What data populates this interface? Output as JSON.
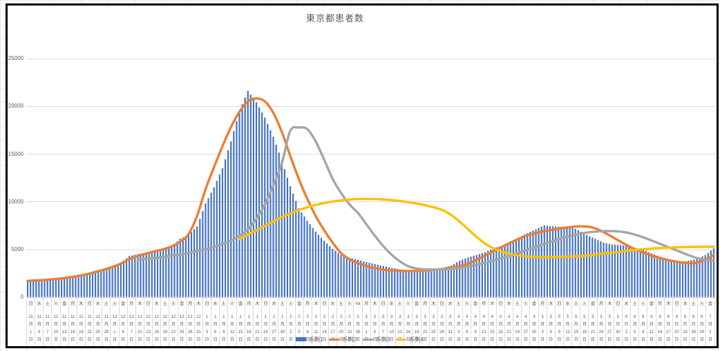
{
  "chart_data": {
    "type": "bar",
    "title": "東京都患者数",
    "xlabel": "",
    "ylabel": "",
    "ylim": [
      0,
      25000
    ],
    "y_tick_step": 5000,
    "y_tick_labels": [
      "0",
      "5000",
      "10000",
      "15000",
      "20000",
      "25000"
    ],
    "grid": true,
    "legend_position": "bottom",
    "categories_note": "vertical labels: weekday + month/day, one label every 3 days, daily bars",
    "categories": [
      [
        "日",
        11,
        1
      ],
      [
        "水",
        11,
        4
      ],
      [
        "土",
        11,
        7
      ],
      [
        "火",
        11,
        10
      ],
      [
        "金",
        11,
        13
      ],
      [
        "月",
        11,
        16
      ],
      [
        "木",
        11,
        19
      ],
      [
        "日",
        11,
        22
      ],
      [
        "水",
        11,
        25
      ],
      [
        "土",
        11,
        28
      ],
      [
        "火",
        12,
        1
      ],
      [
        "金",
        12,
        4
      ],
      [
        "月",
        12,
        7
      ],
      [
        "木",
        12,
        10
      ],
      [
        "日",
        12,
        13
      ],
      [
        "水",
        12,
        16
      ],
      [
        "土",
        12,
        19
      ],
      [
        "火",
        12,
        22
      ],
      [
        "金",
        12,
        25
      ],
      [
        "月",
        12,
        28
      ],
      [
        "木",
        12,
        31
      ],
      [
        "日",
        1,
        3
      ],
      [
        "水",
        1,
        6
      ],
      [
        "土",
        1,
        9
      ],
      [
        "火",
        1,
        12
      ],
      [
        "金",
        1,
        15
      ],
      [
        "月",
        1,
        18
      ],
      [
        "木",
        1,
        21
      ],
      [
        "日",
        1,
        24
      ],
      [
        "水",
        1,
        27
      ],
      [
        "土",
        1,
        30
      ],
      [
        "火",
        2,
        2
      ],
      [
        "金",
        2,
        5
      ],
      [
        "月",
        2,
        8
      ],
      [
        "木",
        2,
        11
      ],
      [
        "日",
        2,
        14
      ],
      [
        "水",
        2,
        17
      ],
      [
        "土",
        2,
        20
      ],
      [
        "火",
        2,
        23
      ],
      [
        "ha",
        2,
        26
      ],
      [
        "月",
        3,
        1
      ],
      [
        "木",
        3,
        4
      ],
      [
        "日",
        3,
        7
      ],
      [
        "水",
        3,
        10
      ],
      [
        "土",
        3,
        13
      ],
      [
        "火",
        3,
        16
      ],
      [
        "金",
        3,
        19
      ],
      [
        "月",
        3,
        22
      ],
      [
        "木",
        3,
        25
      ],
      [
        "日",
        3,
        28
      ],
      [
        "水",
        3,
        31
      ],
      [
        "土",
        4,
        3
      ],
      [
        "火",
        4,
        6
      ],
      [
        "金",
        4,
        9
      ],
      [
        "月",
        4,
        12
      ],
      [
        "木",
        4,
        15
      ],
      [
        "日",
        4,
        18
      ],
      [
        "水",
        4,
        21
      ],
      [
        "土",
        4,
        24
      ],
      [
        "火",
        4,
        27
      ],
      [
        "金",
        4,
        30
      ],
      [
        "月",
        5,
        3
      ],
      [
        "木",
        5,
        6
      ],
      [
        "日",
        5,
        9
      ],
      [
        "水",
        5,
        12
      ],
      [
        "土",
        5,
        15
      ],
      [
        "火",
        5,
        18
      ],
      [
        "金",
        5,
        21
      ],
      [
        "月",
        5,
        24
      ],
      [
        "木",
        5,
        27
      ],
      [
        "日",
        5,
        30
      ],
      [
        "水",
        6,
        2
      ],
      [
        "土",
        6,
        5
      ],
      [
        "火",
        6,
        8
      ],
      [
        "金",
        6,
        11
      ],
      [
        "月",
        6,
        14
      ],
      [
        "木",
        6,
        17
      ],
      [
        "日",
        6,
        20
      ],
      [
        "水",
        6,
        23
      ],
      [
        "土",
        6,
        26
      ],
      [
        "火",
        6,
        29
      ],
      [
        "金",
        7,
        2
      ]
    ],
    "series": [
      {
        "name": "系列1",
        "type": "bar",
        "color": "#4472C4",
        "values": [
          1700,
          1750,
          1800,
          1900,
          2000,
          2150,
          2300,
          2500,
          2750,
          2950,
          3200,
          3600,
          4300,
          4500,
          4650,
          4800,
          5000,
          5300,
          6100,
          6500,
          7400,
          9800,
          11500,
          13500,
          16300,
          19500,
          21600,
          20400,
          18800,
          16800,
          14300,
          11600,
          9300,
          8000,
          6850,
          5900,
          5050,
          4400,
          4100,
          3900,
          3650,
          3450,
          3250,
          3050,
          2900,
          2800,
          2850,
          2900,
          2950,
          3050,
          3300,
          3800,
          4150,
          4400,
          4700,
          5100,
          5400,
          5800,
          6250,
          6700,
          7100,
          7500,
          7400,
          7350,
          7450,
          7000,
          6500,
          6100,
          5700,
          5500,
          5450,
          5300,
          5100,
          4800,
          4450,
          4100,
          3850,
          3700,
          3800,
          4000,
          4400,
          5100
        ]
      },
      {
        "name": "系列2",
        "type": "line",
        "color": "#ED7D31",
        "values": [
          1700,
          1740,
          1790,
          1860,
          1950,
          2070,
          2220,
          2400,
          2620,
          2870,
          3150,
          3500,
          3950,
          4300,
          4550,
          4780,
          5000,
          5300,
          5800,
          6600,
          8500,
          11300,
          13600,
          15800,
          17800,
          19400,
          20500,
          20800,
          20500,
          19300,
          17300,
          14800,
          12400,
          10300,
          8500,
          7000,
          5700,
          4600,
          3950,
          3550,
          3250,
          3020,
          2870,
          2780,
          2740,
          2730,
          2740,
          2780,
          2850,
          2950,
          3070,
          3250,
          3500,
          3900,
          4350,
          4800,
          5250,
          5700,
          6100,
          6450,
          6700,
          6900,
          7050,
          7200,
          7320,
          7400,
          7380,
          7200,
          6800,
          6300,
          5800,
          5300,
          4900,
          4550,
          4250,
          4000,
          3800,
          3650,
          3550,
          3600,
          3900,
          4400
        ]
      },
      {
        "name": "系列3",
        "type": "line",
        "color": "#A5A5A5",
        "values": [
          null,
          null,
          null,
          null,
          null,
          null,
          null,
          null,
          null,
          null,
          null,
          null,
          null,
          3900,
          4000,
          4100,
          4200,
          4320,
          4450,
          4600,
          4800,
          5000,
          5250,
          5550,
          5900,
          6400,
          7100,
          8200,
          9700,
          11700,
          14000,
          17400,
          17750,
          17600,
          16300,
          14400,
          12400,
          10900,
          9700,
          8800,
          7600,
          6400,
          5300,
          4400,
          3700,
          3200,
          2980,
          2900,
          2880,
          2900,
          2950,
          3050,
          3200,
          3380,
          3600,
          3850,
          4100,
          4350,
          4650,
          4950,
          5250,
          5550,
          5850,
          6150,
          6400,
          6600,
          6750,
          6850,
          6900,
          6900,
          6850,
          6700,
          6450,
          6150,
          5800,
          5450,
          5100,
          4750,
          4400,
          4100,
          3900,
          3800
        ]
      },
      {
        "name": "系列4",
        "type": "line",
        "color": "#FFC000",
        "values": [
          null,
          null,
          null,
          null,
          null,
          null,
          null,
          null,
          null,
          null,
          null,
          null,
          null,
          null,
          null,
          null,
          null,
          null,
          null,
          null,
          null,
          null,
          null,
          null,
          null,
          6100,
          6550,
          7000,
          7450,
          7900,
          8350,
          8750,
          9100,
          9400,
          9650,
          9850,
          10000,
          10130,
          10220,
          10270,
          10280,
          10260,
          10220,
          10150,
          10050,
          9930,
          9780,
          9600,
          9380,
          9100,
          8600,
          7900,
          7100,
          6300,
          5600,
          5100,
          4750,
          4500,
          4350,
          4250,
          4200,
          4180,
          4180,
          4200,
          4230,
          4280,
          4350,
          4450,
          4550,
          4650,
          4750,
          4850,
          4950,
          5030,
          5100,
          5150,
          5190,
          5220,
          5240,
          5250,
          5260,
          5270
        ]
      }
    ]
  }
}
